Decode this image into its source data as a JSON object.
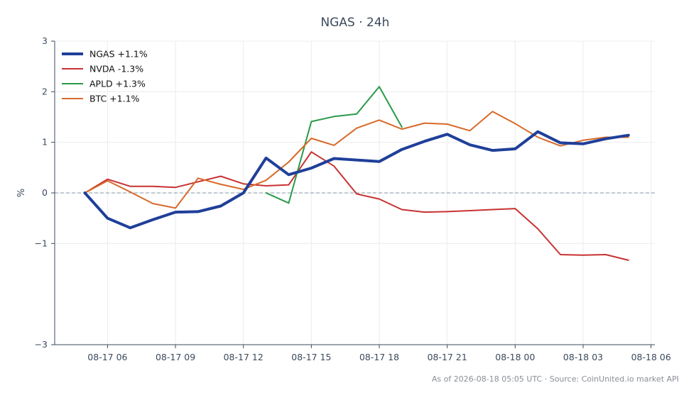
{
  "chart_data": {
    "type": "line",
    "title": "NGAS · 24h",
    "ylabel": "%",
    "xlabel": "",
    "ylim": [
      -3,
      3
    ],
    "yticks": [
      "−3",
      "−1",
      "0",
      "1",
      "2",
      "3"
    ],
    "ytick_values": [
      -3,
      -1,
      0,
      1,
      2,
      3
    ],
    "xlim": [
      "08-17 03:40",
      "08-18 06:10"
    ],
    "xticks": [
      "08-17 06",
      "08-17 09",
      "08-17 12",
      "08-17 15",
      "08-17 18",
      "08-17 21",
      "08-18 00",
      "08-18 03",
      "08-18 06"
    ],
    "xtick_values": [
      "08-17 06:00",
      "08-17 09:00",
      "08-17 12:00",
      "08-17 15:00",
      "08-17 18:00",
      "08-17 21:00",
      "08-18 00:00",
      "08-18 03:00",
      "08-18 06:00"
    ],
    "grid": true,
    "zero_line": true,
    "legend_position": "top-left",
    "x": [
      "08-17 05:00",
      "08-17 06:00",
      "08-17 07:00",
      "08-17 08:00",
      "08-17 09:00",
      "08-17 10:00",
      "08-17 11:00",
      "08-17 12:00",
      "08-17 13:00",
      "08-17 14:00",
      "08-17 15:00",
      "08-17 16:00",
      "08-17 17:00",
      "08-17 18:00",
      "08-17 19:00",
      "08-17 20:00",
      "08-17 21:00",
      "08-17 22:00",
      "08-17 23:00",
      "08-18 00:00",
      "08-18 01:00",
      "08-18 02:00",
      "08-18 03:00",
      "08-18 04:00",
      "08-18 05:00"
    ],
    "series": [
      {
        "name": "NGAS +1.1%",
        "color": "#1f3f99",
        "width": 4,
        "values": [
          0.0,
          -0.5,
          -0.69,
          -0.53,
          -0.38,
          -0.37,
          -0.26,
          0.0,
          0.69,
          0.36,
          0.49,
          0.68,
          0.65,
          0.62,
          0.86,
          1.02,
          1.16,
          0.95,
          0.84,
          0.87,
          1.21,
          0.99,
          0.97,
          1.07,
          1.14
        ]
      },
      {
        "name": "NVDA -1.3%",
        "color": "#c83232",
        "width": 2,
        "values": [
          0.0,
          0.27,
          0.13,
          0.13,
          0.11,
          0.22,
          0.33,
          0.18,
          0.14,
          0.16,
          0.81,
          0.53,
          -0.02,
          -0.12,
          -0.33,
          -0.38,
          -0.37,
          -0.35,
          -0.33,
          -0.31,
          -0.71,
          -1.22,
          -1.23,
          -1.22,
          -1.33
        ]
      },
      {
        "name": "APLD +1.3%",
        "color": "#2a9a4a",
        "width": 2,
        "values": [
          null,
          null,
          null,
          null,
          null,
          null,
          null,
          null,
          0.0,
          -0.2,
          1.41,
          1.51,
          1.56,
          2.1,
          1.3,
          null,
          null,
          null,
          null,
          null,
          null,
          null,
          null,
          null,
          null
        ]
      },
      {
        "name": "BTC +1.1%",
        "color": "#d8692a",
        "width": 2,
        "values": [
          0.0,
          0.24,
          0.02,
          -0.21,
          -0.3,
          0.29,
          0.17,
          0.07,
          0.25,
          0.61,
          1.08,
          0.94,
          1.28,
          1.44,
          1.26,
          1.38,
          1.36,
          1.23,
          1.61,
          1.37,
          1.1,
          0.93,
          1.04,
          1.1,
          1.1
        ]
      }
    ]
  },
  "footer": "As of 2026-08-18 05:05 UTC · Source: CoinUnited.io market API"
}
